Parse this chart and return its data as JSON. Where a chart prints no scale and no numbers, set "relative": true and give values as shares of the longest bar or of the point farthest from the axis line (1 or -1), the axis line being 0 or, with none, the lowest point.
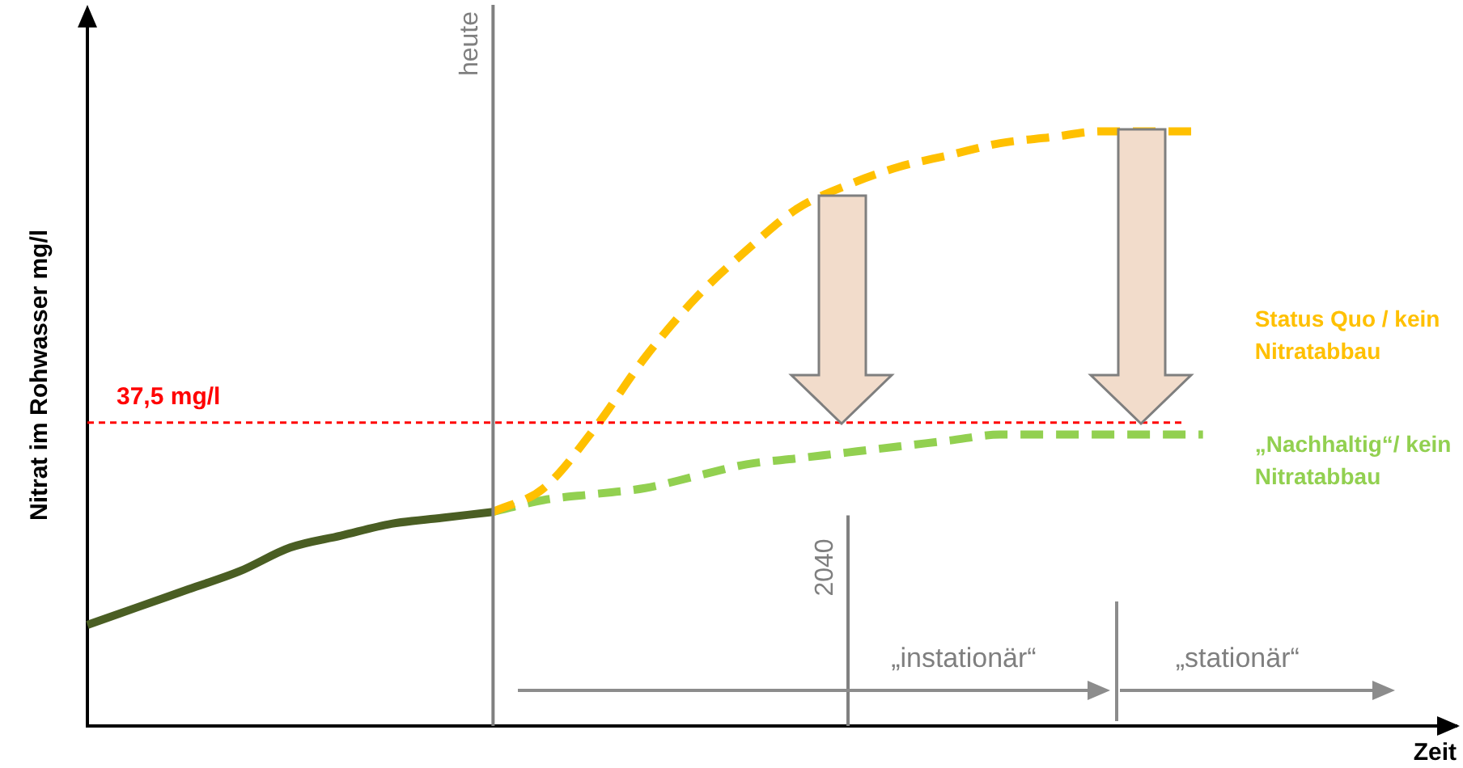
{
  "chart_data": {
    "type": "line",
    "relative": true,
    "xlabel": "Zeit",
    "ylabel": "Nitrat im Rohwasser mg/l",
    "categories": [
      null,
      null,
      null,
      null,
      null,
      null,
      null,
      null,
      null,
      null,
      null,
      null,
      null,
      null,
      null,
      null,
      null,
      null,
      null,
      null,
      null,
      null,
      null,
      null,
      null,
      null,
      null,
      null
    ],
    "series": [
      {
        "color": "#4a5e23",
        "line_style": "solid",
        "values": [
          0.17,
          0.2,
          0.23,
          0.26,
          0.3,
          0.32,
          0.34,
          0.35,
          0.36,
          null,
          null,
          null,
          null,
          null,
          null,
          null,
          null,
          null,
          null,
          null,
          null,
          null,
          null,
          null,
          null,
          null,
          null,
          null
        ]
      },
      {
        "name": "Status Quo / kein Nitratabbau",
        "color": "#ffc000",
        "line_style": "dashed",
        "values": [
          null,
          null,
          null,
          null,
          null,
          null,
          null,
          null,
          0.36,
          0.4,
          0.5,
          0.62,
          0.72,
          0.8,
          0.87,
          0.91,
          0.94,
          0.96,
          0.98,
          0.99,
          1,
          1,
          1,
          null,
          null,
          null,
          null,
          null
        ]
      },
      {
        "name": "„Nachhaltig“/ kein Nitratabbau",
        "color": "#92d050",
        "line_style": "dashed",
        "values": [
          null,
          null,
          null,
          null,
          null,
          null,
          null,
          null,
          0.36,
          0.38,
          0.39,
          0.4,
          0.42,
          0.44,
          0.45,
          0.46,
          0.47,
          0.48,
          0.49,
          0.49,
          0.49,
          0.49,
          0.49,
          null,
          null,
          null,
          null,
          null
        ]
      }
    ],
    "ref_lines": [
      {
        "axis": "y",
        "value": 0.51,
        "label": "37,5 mg/l",
        "color": "#ff0000",
        "line_style": "dashed"
      }
    ],
    "annotations": [
      "heute",
      "2040",
      "„instationär“",
      "„stationär“"
    ],
    "grid": false,
    "legend": false,
    "tick_labels": false,
    "marker": "none"
  }
}
